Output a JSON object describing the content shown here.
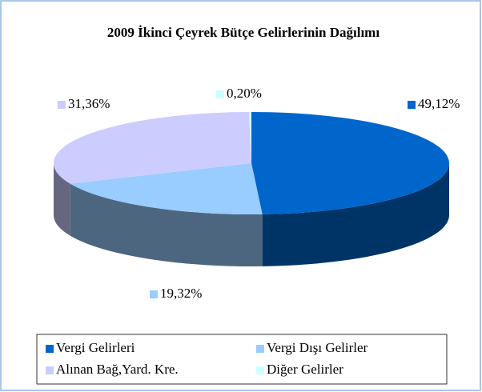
{
  "chart_data": {
    "type": "pie3d",
    "title": "2009 İkinci Çeyrek Bütçe Gelirlerinin Dağılımı",
    "categories": [
      "Vergi Gelirleri",
      "Vergi Dışı Gelirler",
      "Alınan Bağ,Yard. Kre.",
      "Diğer Gelirler"
    ],
    "values": [
      49.12,
      19.32,
      31.36,
      0.2
    ],
    "value_labels": [
      "49,12%",
      "19,32%",
      "31,36%",
      "0,20%"
    ],
    "colors": [
      "#0066cc",
      "#99ccff",
      "#ccccff",
      "#ccffff"
    ],
    "legend": "bottom"
  }
}
